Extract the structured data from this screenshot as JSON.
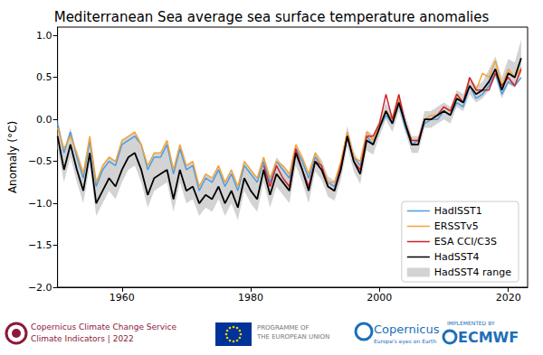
{
  "chart_data": {
    "type": "line",
    "title": "Mediterranean Sea average sea surface temperature anomalies",
    "y_label": "Anomaly (°C)",
    "x": [
      1950,
      1951,
      1952,
      1953,
      1954,
      1955,
      1956,
      1957,
      1958,
      1959,
      1960,
      1961,
      1962,
      1963,
      1964,
      1965,
      1966,
      1967,
      1968,
      1969,
      1970,
      1971,
      1972,
      1973,
      1974,
      1975,
      1976,
      1977,
      1978,
      1979,
      1980,
      1981,
      1982,
      1983,
      1984,
      1985,
      1986,
      1987,
      1988,
      1989,
      1990,
      1991,
      1992,
      1993,
      1994,
      1995,
      1996,
      1997,
      1998,
      1999,
      2000,
      2001,
      2002,
      2003,
      2004,
      2005,
      2006,
      2007,
      2008,
      2009,
      2010,
      2011,
      2012,
      2013,
      2014,
      2015,
      2016,
      2017,
      2018,
      2019,
      2020,
      2021,
      2022
    ],
    "series": [
      {
        "name": "HadISST1",
        "color": "#4a9de3",
        "values": [
          -0.05,
          -0.4,
          -0.15,
          -0.45,
          -0.7,
          -0.25,
          -0.8,
          -0.6,
          -0.5,
          -0.55,
          -0.3,
          -0.25,
          -0.2,
          -0.3,
          -0.6,
          -0.45,
          -0.45,
          -0.3,
          -0.65,
          -0.35,
          -0.6,
          -0.55,
          -0.85,
          -0.7,
          -0.75,
          -0.6,
          -0.8,
          -0.65,
          -0.85,
          -0.55,
          -0.65,
          -0.75,
          -0.5,
          -0.75,
          -0.5,
          -0.6,
          -0.7,
          -0.35,
          -0.5,
          -0.7,
          -0.45,
          -0.55,
          -0.75,
          -0.8,
          -0.55,
          -0.2,
          -0.45,
          -0.55,
          -0.2,
          -0.3,
          -0.1,
          0.05,
          -0.05,
          0.2,
          -0.1,
          -0.3,
          -0.25,
          -0.05,
          0.0,
          0.0,
          0.1,
          0.05,
          0.2,
          0.15,
          0.4,
          0.25,
          0.3,
          0.4,
          0.55,
          0.3,
          0.45,
          0.4,
          0.5
        ]
      },
      {
        "name": "ERSSTv5",
        "color": "#f2a33a",
        "values": [
          -0.1,
          -0.35,
          -0.2,
          -0.4,
          -0.65,
          -0.2,
          -0.75,
          -0.55,
          -0.45,
          -0.5,
          -0.25,
          -0.2,
          -0.15,
          -0.3,
          -0.55,
          -0.4,
          -0.4,
          -0.25,
          -0.6,
          -0.3,
          -0.55,
          -0.5,
          -0.8,
          -0.65,
          -0.7,
          -0.55,
          -0.75,
          -0.6,
          -0.8,
          -0.5,
          -0.6,
          -0.7,
          -0.45,
          -0.7,
          -0.5,
          -0.55,
          -0.65,
          -0.3,
          -0.45,
          -0.65,
          -0.4,
          -0.55,
          -0.75,
          -0.75,
          -0.5,
          -0.15,
          -0.45,
          -0.5,
          -0.15,
          -0.25,
          -0.05,
          0.1,
          0.0,
          0.25,
          -0.05,
          -0.25,
          -0.25,
          0.0,
          0.05,
          0.05,
          0.15,
          0.1,
          0.3,
          0.2,
          0.5,
          0.35,
          0.55,
          0.5,
          0.7,
          0.4,
          0.6,
          0.5,
          0.62
        ]
      },
      {
        "name": "ESA CCI/C3S",
        "color": "#d2232a",
        "values": [
          null,
          null,
          null,
          null,
          null,
          null,
          null,
          null,
          null,
          null,
          null,
          null,
          null,
          null,
          null,
          null,
          null,
          null,
          null,
          null,
          null,
          null,
          null,
          null,
          null,
          null,
          null,
          null,
          null,
          null,
          null,
          null,
          -0.55,
          -0.8,
          -0.55,
          -0.7,
          -0.8,
          -0.35,
          -0.6,
          -0.8,
          -0.5,
          -0.55,
          -0.8,
          -0.85,
          -0.55,
          -0.2,
          -0.5,
          -0.6,
          -0.2,
          -0.2,
          -0.05,
          0.3,
          0.0,
          0.3,
          -0.05,
          -0.25,
          -0.25,
          0.0,
          0.0,
          0.05,
          0.15,
          0.1,
          0.3,
          0.2,
          0.5,
          0.35,
          0.35,
          0.35,
          0.55,
          0.4,
          0.5,
          0.4,
          0.6
        ]
      },
      {
        "name": "HadSST4",
        "color": "#000000",
        "values": [
          -0.2,
          -0.6,
          -0.3,
          -0.6,
          -0.85,
          -0.4,
          -1.0,
          -0.85,
          -0.7,
          -0.8,
          -0.6,
          -0.45,
          -0.4,
          -0.6,
          -0.9,
          -0.7,
          -0.65,
          -0.6,
          -0.95,
          -0.6,
          -0.85,
          -0.8,
          -1.0,
          -0.9,
          -0.95,
          -0.8,
          -1.0,
          -0.85,
          -1.05,
          -0.7,
          -0.85,
          -0.95,
          -0.6,
          -0.9,
          -0.65,
          -0.75,
          -0.85,
          -0.4,
          -0.6,
          -0.85,
          -0.5,
          -0.6,
          -0.8,
          -0.85,
          -0.6,
          -0.2,
          -0.5,
          -0.65,
          -0.25,
          -0.3,
          -0.1,
          0.1,
          -0.05,
          0.2,
          -0.05,
          -0.3,
          -0.3,
          0.0,
          0.0,
          0.05,
          0.1,
          0.05,
          0.25,
          0.2,
          0.4,
          0.3,
          0.35,
          0.45,
          0.6,
          0.35,
          0.55,
          0.5,
          0.73
        ]
      },
      {
        "name": "HadSST4 range",
        "type": "band",
        "color": "#d3d3d3",
        "lower": [
          -0.35,
          -0.75,
          -0.45,
          -0.75,
          -1.0,
          -0.55,
          -1.15,
          -1.0,
          -0.85,
          -0.95,
          -0.75,
          -0.6,
          -0.55,
          -0.75,
          -1.05,
          -0.85,
          -0.8,
          -0.75,
          -1.1,
          -0.75,
          -1.0,
          -0.95,
          -1.15,
          -1.05,
          -1.1,
          -0.95,
          -1.15,
          -1.0,
          -1.2,
          -0.85,
          -1.0,
          -1.1,
          -0.75,
          -1.05,
          -0.8,
          -0.9,
          -1.0,
          -0.55,
          -0.75,
          -1.0,
          -0.62,
          -0.72,
          -0.92,
          -0.97,
          -0.72,
          -0.32,
          -0.62,
          -0.77,
          -0.37,
          -0.42,
          -0.2,
          0.0,
          -0.15,
          0.1,
          -0.15,
          -0.4,
          -0.4,
          -0.1,
          -0.1,
          -0.05,
          0.0,
          -0.05,
          0.15,
          0.1,
          0.3,
          0.2,
          0.25,
          0.35,
          0.5,
          0.25,
          0.42,
          0.38,
          0.55
        ],
        "upper": [
          0.0,
          -0.35,
          -0.1,
          -0.4,
          -0.6,
          -0.2,
          -0.75,
          -0.55,
          -0.45,
          -0.5,
          -0.25,
          -0.2,
          -0.15,
          -0.3,
          -0.55,
          -0.4,
          -0.4,
          -0.25,
          -0.6,
          -0.3,
          -0.55,
          -0.5,
          -0.8,
          -0.65,
          -0.7,
          -0.55,
          -0.75,
          -0.6,
          -0.8,
          -0.5,
          -0.6,
          -0.7,
          -0.45,
          -0.7,
          -0.45,
          -0.55,
          -0.65,
          -0.3,
          -0.45,
          -0.65,
          -0.38,
          -0.48,
          -0.68,
          -0.73,
          -0.48,
          -0.08,
          -0.38,
          -0.53,
          -0.13,
          -0.18,
          0.0,
          0.2,
          0.05,
          0.3,
          0.05,
          -0.2,
          -0.2,
          0.1,
          0.1,
          0.15,
          0.2,
          0.15,
          0.35,
          0.3,
          0.5,
          0.4,
          0.45,
          0.6,
          0.75,
          0.5,
          0.72,
          0.68,
          0.95
        ]
      }
    ],
    "xlim": [
      1950,
      2023
    ],
    "xticks": [
      1960,
      1980,
      2000,
      2020
    ],
    "ylim": [
      -2.0,
      1.1
    ],
    "yticks": [
      {
        "value": -2.0,
        "label": "−2.0"
      },
      {
        "value": -1.5,
        "label": "−1.5"
      },
      {
        "value": -1.0,
        "label": "−1.0"
      },
      {
        "value": -0.5,
        "label": "−0.5"
      },
      {
        "value": 0.0,
        "label": "0.0"
      },
      {
        "value": 0.5,
        "label": "0.5"
      },
      {
        "value": 1.0,
        "label": "1.0"
      }
    ],
    "grid": false,
    "legend": "lower right"
  },
  "footer": {
    "c3s": [
      "Copernicus Climate Change Service",
      "Climate Indicators | 2022"
    ],
    "eu": "PROGRAMME OF THE EUROPEAN UNION",
    "copernicus": [
      "Copernicus",
      "Europe's eyes on Earth"
    ],
    "ecmwf": [
      "IMPLEMENTED BY",
      "ECMWF"
    ]
  }
}
